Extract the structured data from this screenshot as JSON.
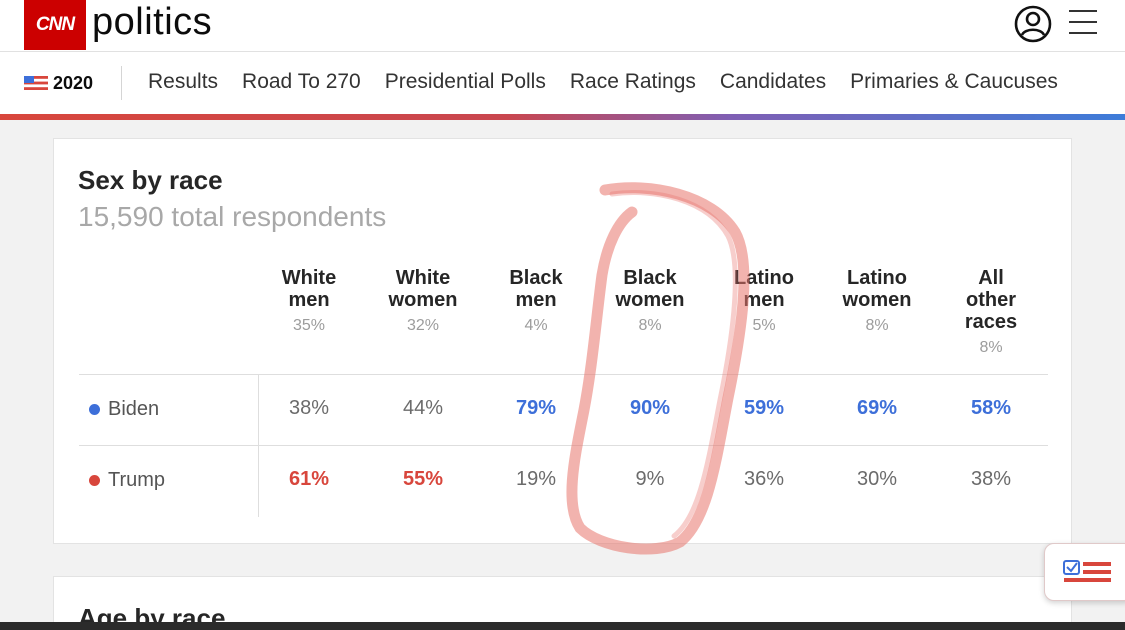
{
  "header": {
    "logo_text": "CNN",
    "section": "politics",
    "brand_color": "#cc0000"
  },
  "nav": {
    "year": "2020",
    "links": [
      "Results",
      "Road To 270",
      "Presidential Polls",
      "Race Ratings",
      "Candidates",
      "Primaries & Caucuses"
    ]
  },
  "card": {
    "title": "Sex by race",
    "subtitle": "15,590 total respondents",
    "columns": [
      {
        "label_lines": [
          "White",
          "men"
        ],
        "share": "35%"
      },
      {
        "label_lines": [
          "White",
          "women"
        ],
        "share": "32%"
      },
      {
        "label_lines": [
          "Black",
          "men"
        ],
        "share": "4%"
      },
      {
        "label_lines": [
          "Black",
          "women"
        ],
        "share": "8%"
      },
      {
        "label_lines": [
          "Latino",
          "men"
        ],
        "share": "5%"
      },
      {
        "label_lines": [
          "Latino",
          "women"
        ],
        "share": "8%"
      },
      {
        "label_lines": [
          "All",
          "other",
          "races"
        ],
        "share": "8%"
      }
    ],
    "rows": [
      {
        "label": "Biden",
        "color": "#3d6fd9",
        "values": [
          "38%",
          "44%",
          "79%",
          "90%",
          "59%",
          "69%",
          "58%"
        ],
        "winner": [
          false,
          false,
          true,
          true,
          true,
          true,
          true
        ]
      },
      {
        "label": "Trump",
        "color": "#d8463c",
        "values": [
          "61%",
          "55%",
          "19%",
          "9%",
          "36%",
          "30%",
          "38%"
        ],
        "winner": [
          true,
          true,
          false,
          false,
          false,
          false,
          false
        ]
      }
    ]
  },
  "next_card": {
    "title": "Age by race"
  },
  "colors": {
    "biden_blue": "#3d6fd9",
    "trump_red": "#d8463c",
    "annotation_red": "#e8746c"
  },
  "icons": {
    "user": "user-circle-icon",
    "menu": "hamburger-menu-icon",
    "flag": "us-flag-icon",
    "floating": "ballot-checklist-icon"
  }
}
